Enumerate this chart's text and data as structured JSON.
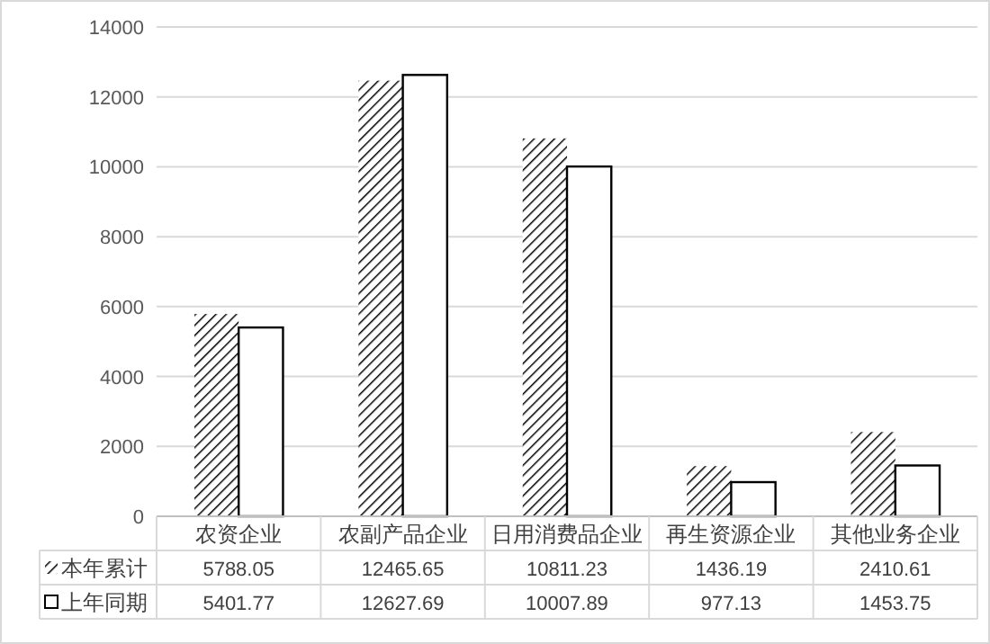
{
  "chart_data": {
    "type": "bar",
    "categories": [
      "农资企业",
      "农副产品企业",
      "日用消费品企业",
      "再生资源企业",
      "其他业务企业"
    ],
    "series": [
      {
        "name": "本年累计",
        "color": "#000000",
        "values": [
          5788.05,
          12465.65,
          10811.23,
          1436.19,
          2410.61
        ]
      },
      {
        "name": "上年同期",
        "color": "#ffffff",
        "values": [
          5401.77,
          12627.69,
          10007.89,
          977.13,
          1453.75
        ]
      }
    ],
    "ylim": [
      0,
      14000
    ],
    "yticks": [
      0,
      2000,
      4000,
      6000,
      8000,
      10000,
      12000,
      14000
    ],
    "grid": "y",
    "legend": "bottom",
    "data_labels": true
  }
}
